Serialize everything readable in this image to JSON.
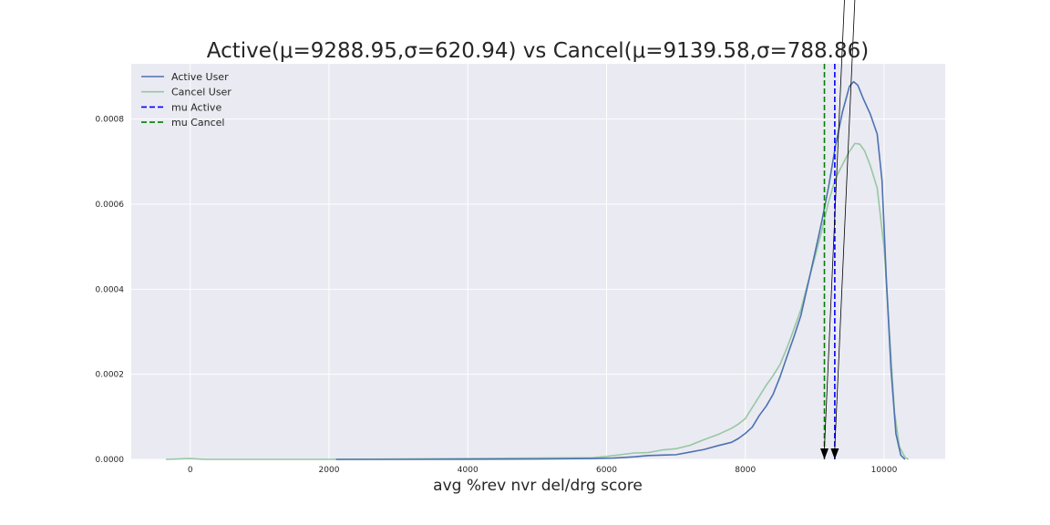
{
  "chart_data": {
    "type": "line",
    "title": "Active(μ=9288.95,σ=620.94) vs Cancel(μ=9139.58,σ=788.86)",
    "xlabel": "avg %rev nvr del/drg score",
    "ylabel": "",
    "xlim": [
      -850,
      10880
    ],
    "ylim": [
      0,
      0.00093
    ],
    "x_ticks": [
      0,
      2000,
      4000,
      6000,
      8000,
      10000
    ],
    "x_tick_labels": [
      "0",
      "2000",
      "4000",
      "6000",
      "8000",
      "10000"
    ],
    "y_ticks": [
      0,
      0.0002,
      0.0004,
      0.0006,
      0.0008
    ],
    "y_tick_labels": [
      "0.0000",
      "0.0002",
      "0.0004",
      "0.0006",
      "0.0008"
    ],
    "grid": true,
    "legend_position": "top-left",
    "series": [
      {
        "name": "Active User",
        "color": "#4c72b0",
        "dash": "solid",
        "x": [
          2100,
          3000,
          4000,
          5000,
          5800,
          6100,
          6400,
          6600,
          6800,
          7000,
          7200,
          7400,
          7600,
          7800,
          7900,
          8000,
          8100,
          8200,
          8300,
          8400,
          8500,
          8600,
          8700,
          8800,
          8900,
          9000,
          9100,
          9200,
          9300,
          9400,
          9500,
          9560,
          9620,
          9700,
          9800,
          9900,
          9970,
          10030,
          10100,
          10170,
          10240,
          10300
        ],
        "y": [
          0,
          0,
          5e-07,
          1e-06,
          2e-06,
          3e-06,
          6e-06,
          9e-06,
          1e-05,
          1.1e-05,
          1.7e-05,
          2.3e-05,
          3.2e-05,
          4e-05,
          4.9e-05,
          6.1e-05,
          7.6e-05,
          0.000103,
          0.000125,
          0.000153,
          0.000194,
          0.000242,
          0.000288,
          0.000338,
          0.00041,
          0.000483,
          0.000558,
          0.000641,
          0.000738,
          0.000817,
          0.000877,
          0.000888,
          0.00088,
          0.000848,
          0.000812,
          0.000765,
          0.000655,
          0.00043,
          0.00021,
          6e-05,
          1e-05,
          0
        ]
      },
      {
        "name": "Cancel User",
        "color": "#96c8a2",
        "dash": "solid",
        "x": [
          -350,
          0,
          200,
          1000,
          2000,
          3000,
          4000,
          5000,
          5800,
          6000,
          6200,
          6400,
          6600,
          6800,
          7000,
          7200,
          7400,
          7600,
          7800,
          7900,
          8000,
          8100,
          8200,
          8300,
          8400,
          8500,
          8600,
          8700,
          8800,
          8900,
          9000,
          9100,
          9200,
          9300,
          9400,
          9500,
          9580,
          9650,
          9720,
          9800,
          9900,
          10000,
          10080,
          10150,
          10220,
          10300,
          10350
        ],
        "y": [
          0,
          2e-06,
          0,
          0,
          0,
          1e-06,
          2e-06,
          3e-06,
          4e-06,
          7e-06,
          1.1e-05,
          1.5e-05,
          1.6e-05,
          2.2e-05,
          2.5e-05,
          3.3e-05,
          4.6e-05,
          5.8e-05,
          7.3e-05,
          8.3e-05,
          9.6e-05,
          0.000122,
          0.000148,
          0.000174,
          0.000197,
          0.000223,
          0.000262,
          0.000306,
          0.000352,
          0.000414,
          0.000473,
          0.000537,
          0.000606,
          0.000661,
          0.000693,
          0.000724,
          0.000743,
          0.000741,
          0.000725,
          0.000691,
          0.000638,
          0.000497,
          0.00029,
          0.00011,
          3e-05,
          5e-06,
          0
        ]
      }
    ],
    "vlines": [
      {
        "name": "mu Active",
        "x": 9288.95,
        "color": "#0000ff",
        "dash": "dashed"
      },
      {
        "name": "mu Cancel",
        "x": 9139.58,
        "color": "#008000",
        "dash": "dashed"
      }
    ],
    "annotations": [
      {
        "type": "arrow",
        "x": 9139.58,
        "y": 0
      },
      {
        "type": "arrow",
        "x": 9288.95,
        "y": 0
      }
    ]
  }
}
